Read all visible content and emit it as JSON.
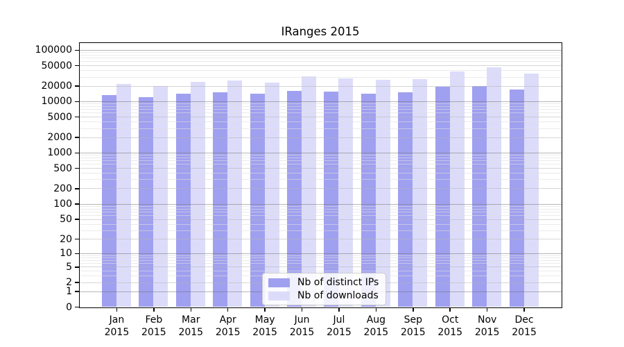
{
  "title": "IRanges 2015",
  "chart_data": {
    "type": "bar",
    "title": "IRanges 2015",
    "categories": [
      "Jan",
      "Feb",
      "Mar",
      "Apr",
      "May",
      "Jun",
      "Jul",
      "Aug",
      "Sep",
      "Oct",
      "Nov",
      "Dec"
    ],
    "x_year_label": "2015",
    "series": [
      {
        "name": "Nb of distinct IPs",
        "color": "#a0a0f0",
        "values": [
          13100,
          12100,
          14100,
          14800,
          14100,
          16100,
          15300,
          14200,
          14800,
          19200,
          19600,
          16900
        ]
      },
      {
        "name": "Nb of downloads",
        "color": "#dcdcfa",
        "values": [
          21900,
          19800,
          23800,
          25600,
          23100,
          30200,
          27800,
          26400,
          27000,
          38000,
          45500,
          34000
        ]
      }
    ],
    "xlabel": "",
    "ylabel": "",
    "y_scale": "log1p",
    "ylim": [
      0,
      137700
    ],
    "y_ticks": [
      0,
      1,
      2,
      5,
      10,
      20,
      50,
      100,
      200,
      500,
      1000,
      2000,
      5000,
      10000,
      20000,
      50000,
      100000
    ],
    "grid": "on",
    "legend_position": "lower-center-inside",
    "colors": {
      "grid_major": "rgba(110,110,110,0.5)",
      "grid_mid": "rgba(180,180,180,0.55)",
      "grid_minor": "rgba(222,222,222,0.6)",
      "axis": "#000000",
      "background": "#ffffff"
    }
  }
}
